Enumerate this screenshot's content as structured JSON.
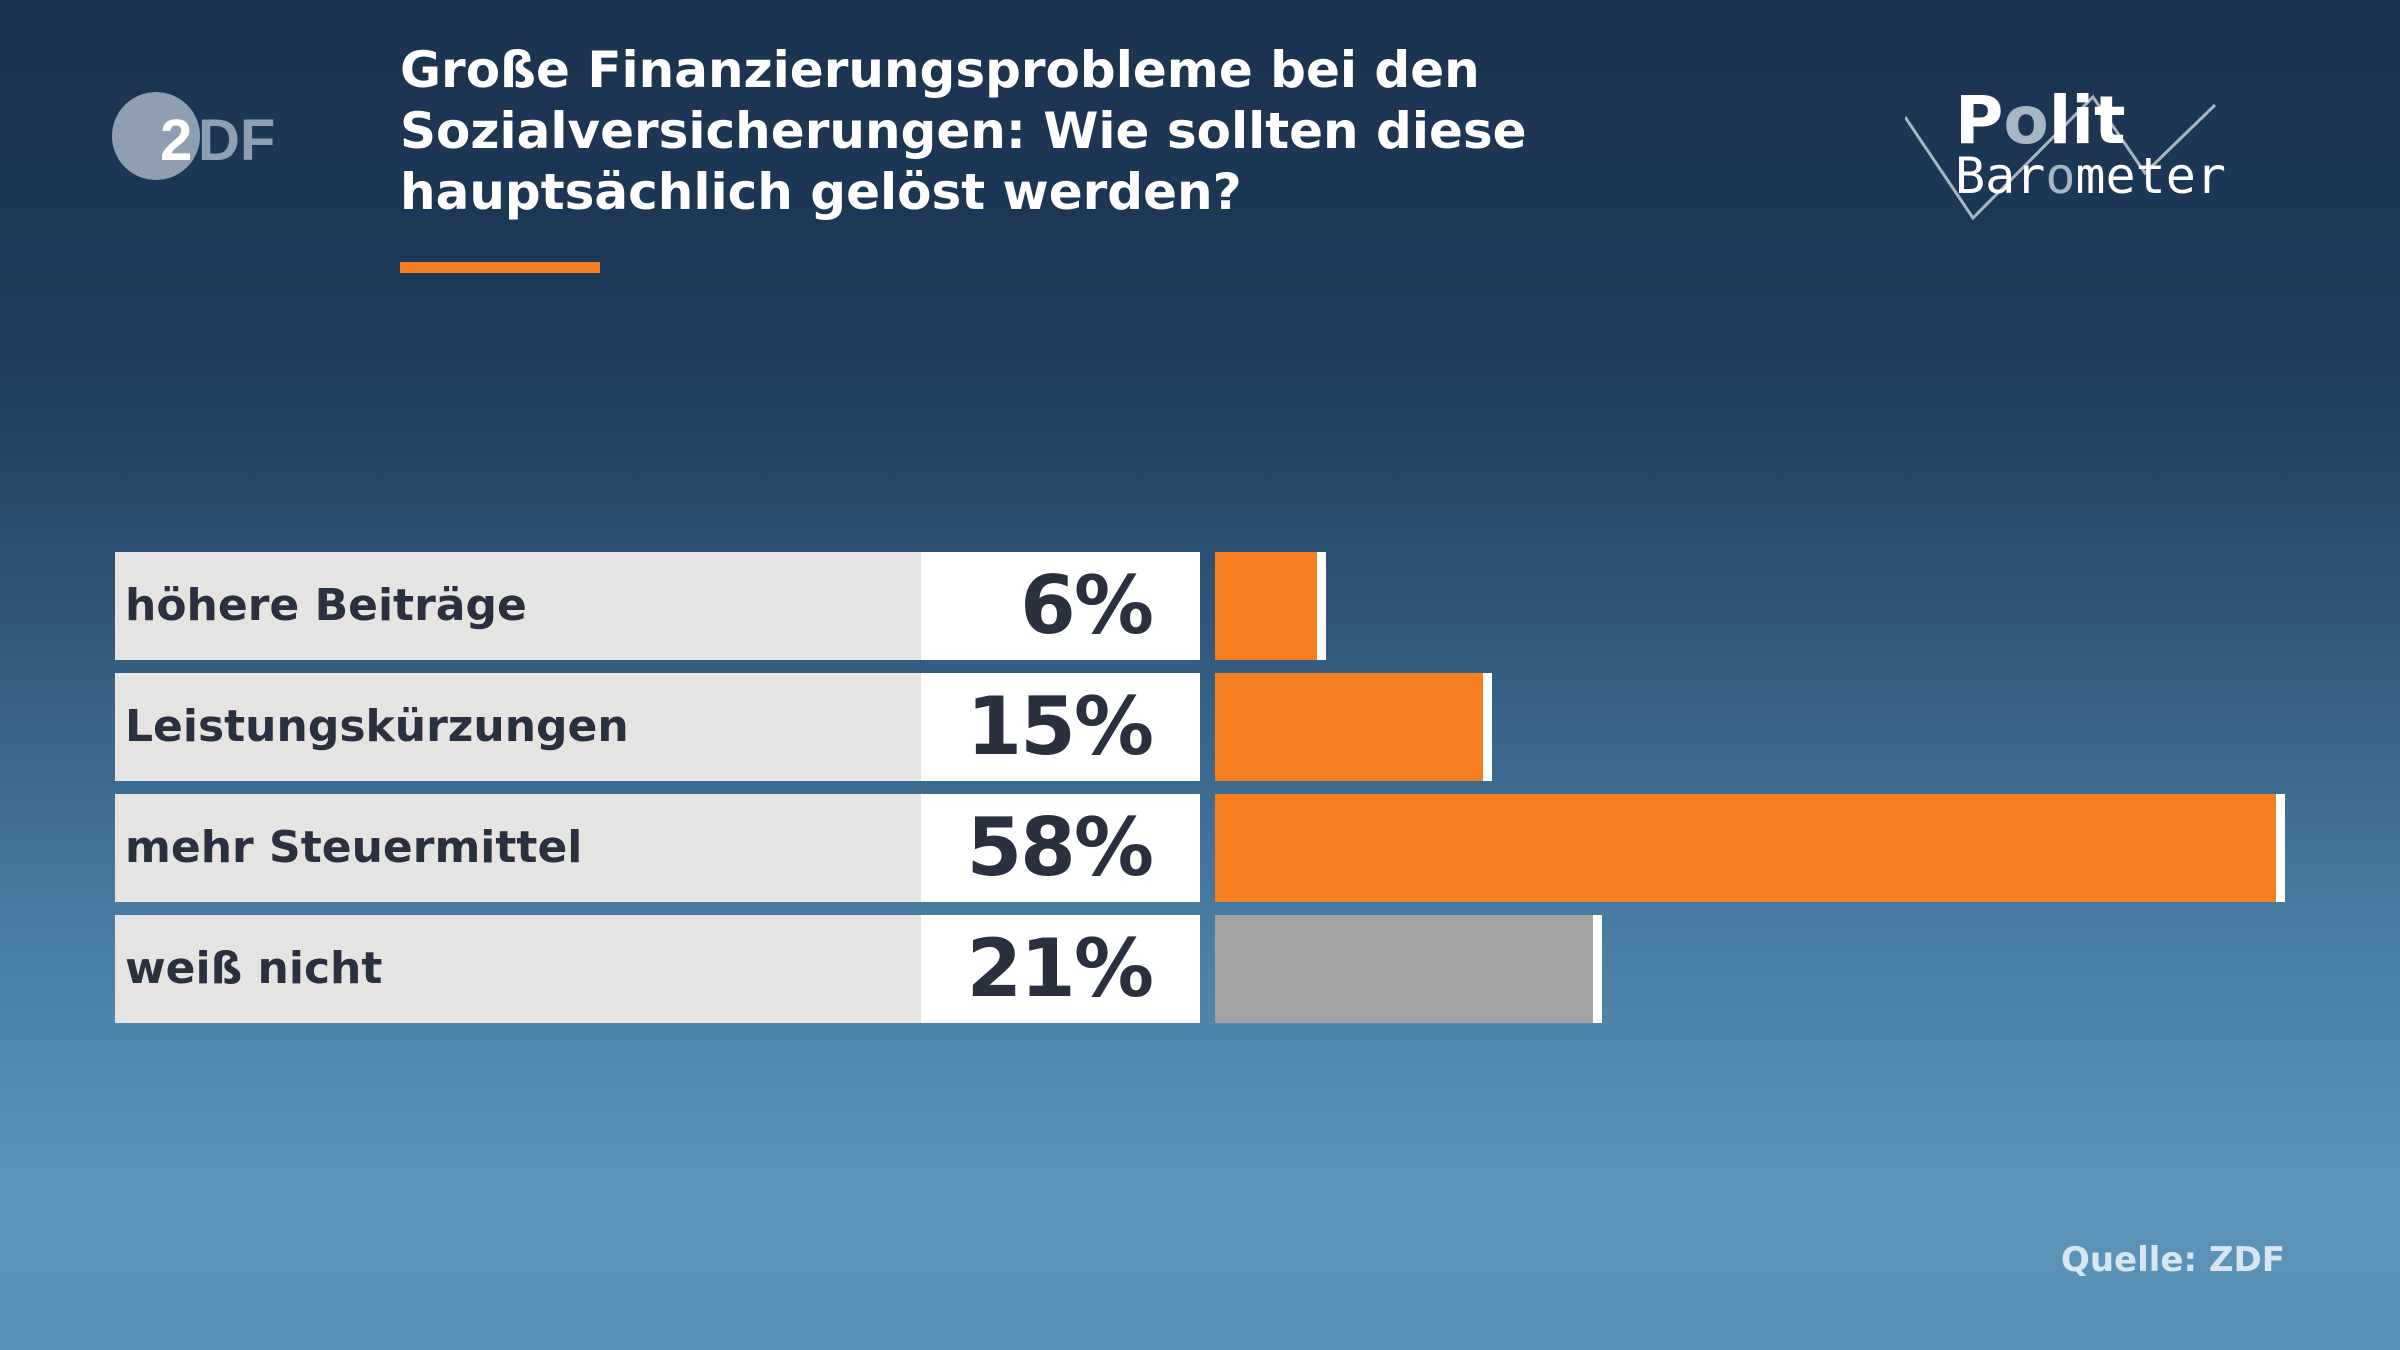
{
  "header": {
    "title": "Große Finanzierungsprobleme bei den Sozialversicherungen: Wie sollten diese hauptsächlich gelöst werden?",
    "logo_left": "ZDF",
    "logo_right": "Polit Barometer"
  },
  "chart_data": {
    "type": "bar",
    "orientation": "horizontal",
    "title": "Große Finanzierungsprobleme bei den Sozialversicherungen: Wie sollten diese hauptsächlich gelöst werden?",
    "categories": [
      "höhere Beiträge",
      "Leistungskürzungen",
      "mehr Steuermittel",
      "weiß nicht"
    ],
    "values": [
      6,
      15,
      58,
      21
    ],
    "value_labels": [
      "6%",
      "15%",
      "58%",
      "21%"
    ],
    "unit": "%",
    "bar_colors": [
      "#f47e20",
      "#f47e20",
      "#f47e20",
      "#a3a3a3"
    ],
    "grid": false
  },
  "footer": {
    "source": "Quelle: ZDF"
  },
  "colors": {
    "accent": "#f47e20",
    "neutral": "#a3a3a3"
  }
}
